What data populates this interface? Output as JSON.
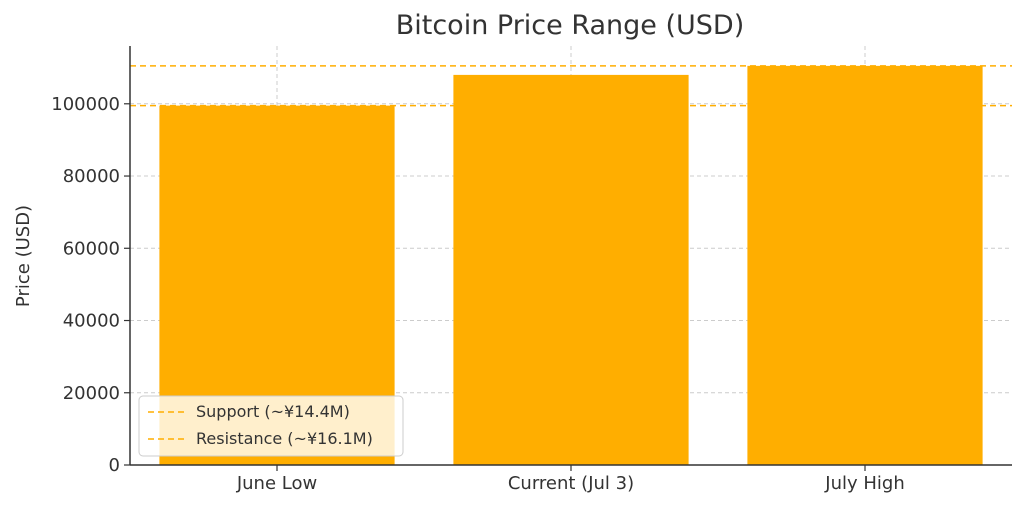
{
  "chart_data": {
    "type": "bar",
    "title": "Bitcoin Price Range (USD)",
    "xlabel": "",
    "ylabel": "Price (USD)",
    "categories": [
      "June Low",
      "Current (Jul 3)",
      "July High"
    ],
    "values": [
      99500,
      108000,
      110500
    ],
    "ylim": [
      0,
      116000
    ],
    "yticks": [
      0,
      20000,
      40000,
      60000,
      80000,
      100000
    ],
    "grid": true,
    "bar_color": "#FFAE00",
    "reference_lines": [
      {
        "name": "Support (~¥14.4M)",
        "value": 99500,
        "color": "#FFAE00",
        "style": "dashed"
      },
      {
        "name": "Resistance (~¥16.1M)",
        "value": 110500,
        "color": "#FFAE00",
        "style": "dashed"
      }
    ],
    "legend_position": "lower-left"
  }
}
